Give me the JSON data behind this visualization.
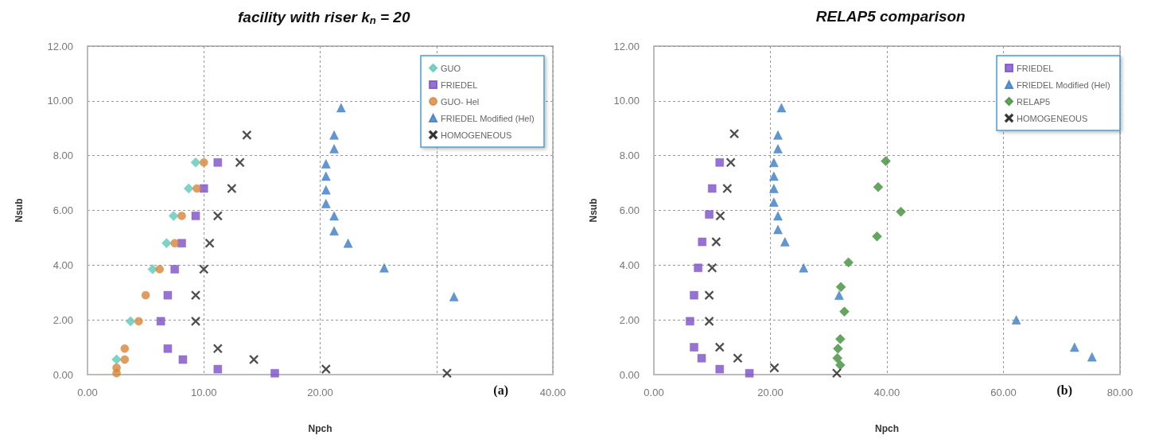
{
  "chart_data": [
    {
      "type": "scatter",
      "title": "facility with riser k$_{n}$ = 20",
      "xlabel": "Npch",
      "ylabel": "Nsub",
      "annotations": [
        "(a)"
      ],
      "xlim": [
        0,
        40
      ],
      "xticks": [
        {
          "value": 0,
          "label": "0.00"
        },
        {
          "value": 10,
          "label": "10.00"
        },
        {
          "value": 20,
          "label": "20.00"
        },
        {
          "value": 30,
          "label": null
        },
        {
          "value": 40,
          "label": "40.00"
        }
      ],
      "ylim": [
        0,
        12
      ],
      "yticks": [
        {
          "value": 0,
          "label": "0.00"
        },
        {
          "value": 2,
          "label": "2.00"
        },
        {
          "value": 4,
          "label": "4.00"
        },
        {
          "value": 6,
          "label": "6.00"
        },
        {
          "value": 8,
          "label": "8.00"
        },
        {
          "value": 10,
          "label": "10.00"
        },
        {
          "value": 12,
          "label": "12.00"
        }
      ],
      "grid": true,
      "legend": "top right",
      "series": [
        {
          "name": "GUO",
          "color": "#5cc8b8",
          "marker": "diamond",
          "x": [
            9.3,
            8.7,
            7.4,
            6.8,
            5.6,
            3.7,
            2.5
          ],
          "values": [
            7.75,
            6.8,
            5.8,
            4.8,
            3.85,
            1.95,
            0.55
          ]
        },
        {
          "name": "FRIEDEL",
          "color": "#7c4fc8",
          "marker": "square",
          "x": [
            11.2,
            10.0,
            9.3,
            8.1,
            7.5,
            6.9,
            6.3,
            6.9,
            8.2,
            11.2,
            16.1
          ],
          "values": [
            7.75,
            6.8,
            5.8,
            4.8,
            3.85,
            2.9,
            1.95,
            0.95,
            0.55,
            0.2,
            0.05
          ]
        },
        {
          "name": "GUO- Hel",
          "color": "#d7853a",
          "marker": "circle",
          "x": [
            10.0,
            9.4,
            8.1,
            7.5,
            6.2,
            5.0,
            4.4,
            3.2,
            3.2,
            2.5,
            2.5
          ],
          "values": [
            7.75,
            6.8,
            5.8,
            4.8,
            3.85,
            2.9,
            1.95,
            0.95,
            0.55,
            0.25,
            0.05
          ]
        },
        {
          "name": "FRIEDEL Modified (Hel)",
          "color": "#3a7cc4",
          "marker": "triangle",
          "x": [
            21.8,
            21.2,
            21.2,
            20.5,
            20.5,
            20.5,
            20.5,
            21.2,
            21.2,
            22.4,
            25.5,
            31.5
          ],
          "values": [
            9.75,
            8.75,
            8.25,
            7.7,
            7.25,
            6.75,
            6.25,
            5.8,
            5.25,
            4.8,
            3.9,
            2.85
          ]
        },
        {
          "name": "HOMOGENEOUS",
          "color": "#222222",
          "marker": "cross",
          "x": [
            13.7,
            13.1,
            12.4,
            11.2,
            10.5,
            10.0,
            9.3,
            9.3,
            11.2,
            14.3,
            20.5,
            30.9
          ],
          "values": [
            8.75,
            7.75,
            6.8,
            5.8,
            4.8,
            3.85,
            2.9,
            1.95,
            0.95,
            0.55,
            0.2,
            0.05
          ]
        }
      ]
    },
    {
      "type": "scatter",
      "title": "RELAP5 comparison",
      "xlabel": "Npch",
      "ylabel": "Nsub",
      "annotations": [
        "(b)"
      ],
      "xlim": [
        0,
        80
      ],
      "xticks": [
        {
          "value": 0,
          "label": "0.00"
        },
        {
          "value": 20,
          "label": "20.00"
        },
        {
          "value": 40,
          "label": "40.00"
        },
        {
          "value": 60,
          "label": "60.00"
        },
        {
          "value": 80,
          "label": "80.00"
        }
      ],
      "ylim": [
        0,
        12
      ],
      "yticks": [
        {
          "value": 0,
          "label": "0.00"
        },
        {
          "value": 2,
          "label": "2.00"
        },
        {
          "value": 4,
          "label": "4.00"
        },
        {
          "value": 6,
          "label": "6.00"
        },
        {
          "value": 8,
          "label": "8.00"
        },
        {
          "value": 10,
          "label": "10.00"
        },
        {
          "value": 12,
          "label": "12.00"
        }
      ],
      "grid": true,
      "legend": "top right",
      "series": [
        {
          "name": "FRIEDEL",
          "color": "#7c4fc8",
          "marker": "square",
          "x": [
            11.3,
            10.0,
            9.5,
            8.3,
            7.6,
            6.9,
            6.2,
            6.9,
            8.2,
            11.3,
            16.4
          ],
          "values": [
            7.75,
            6.8,
            5.85,
            4.85,
            3.9,
            2.9,
            1.95,
            1.0,
            0.6,
            0.2,
            0.05
          ]
        },
        {
          "name": "FRIEDEL Modified (Hel)",
          "color": "#3a7cc4",
          "marker": "triangle",
          "x": [
            21.9,
            21.3,
            21.3,
            20.6,
            20.6,
            20.6,
            20.6,
            21.3,
            21.3,
            22.5,
            25.7,
            31.8,
            62.2,
            72.2,
            75.2
          ],
          "values": [
            9.75,
            8.75,
            8.25,
            7.75,
            7.25,
            6.8,
            6.3,
            5.8,
            5.3,
            4.85,
            3.9,
            2.9,
            2.0,
            1.0,
            0.65
          ]
        },
        {
          "name": "RELAP5",
          "color": "#3f8f3a",
          "marker": "diamond",
          "x": [
            39.8,
            38.5,
            42.4,
            38.3,
            33.4,
            32.1,
            32.7,
            32.0,
            31.6,
            31.5,
            32.0
          ],
          "values": [
            7.8,
            6.85,
            5.95,
            5.05,
            4.1,
            3.2,
            2.3,
            1.3,
            0.95,
            0.6,
            0.35
          ]
        },
        {
          "name": "HOMOGENEOUS",
          "color": "#222222",
          "marker": "cross",
          "x": [
            13.8,
            13.2,
            12.6,
            11.4,
            10.7,
            10.0,
            9.5,
            9.5,
            11.3,
            14.4,
            20.7,
            31.4
          ],
          "values": [
            8.8,
            7.75,
            6.8,
            5.8,
            4.85,
            3.9,
            2.9,
            1.95,
            1.0,
            0.6,
            0.25,
            0.05
          ]
        }
      ]
    }
  ]
}
